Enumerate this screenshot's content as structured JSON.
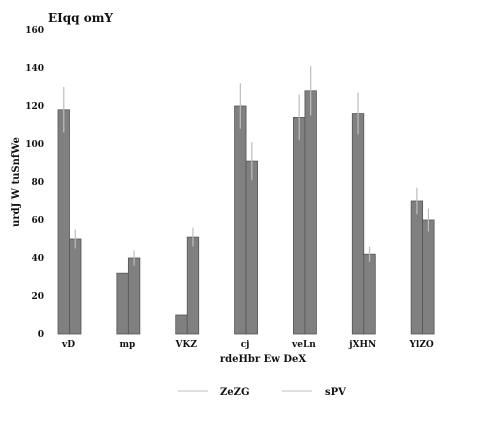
{
  "chart_data": {
    "type": "bar",
    "title": "EIqq omY",
    "xlabel": "rdeHbr Ew DeX",
    "ylabel": "urdJ W tuSnfWe",
    "categories": [
      "vD",
      "mp",
      "VKZ",
      "cj",
      "veLn",
      "jXHN",
      "YlZO"
    ],
    "series": [
      {
        "name": "ZeZG",
        "values": [
          118,
          32,
          10,
          120,
          114,
          116,
          70
        ],
        "errors": [
          12,
          0,
          0,
          12,
          12,
          11,
          7
        ]
      },
      {
        "name": "sPV",
        "values": [
          50,
          40,
          51,
          91,
          128,
          42,
          60
        ],
        "errors": [
          5,
          4,
          5,
          10,
          13,
          4,
          6
        ]
      }
    ],
    "ylim": [
      0,
      160
    ],
    "yticks": [
      0,
      20,
      40,
      60,
      80,
      100,
      120,
      140,
      160
    ],
    "grid": false,
    "legend_position": "bottom",
    "colors": {
      "bar": "#808080",
      "bar_edge": "#555555",
      "error": "#bdbdbd"
    }
  }
}
